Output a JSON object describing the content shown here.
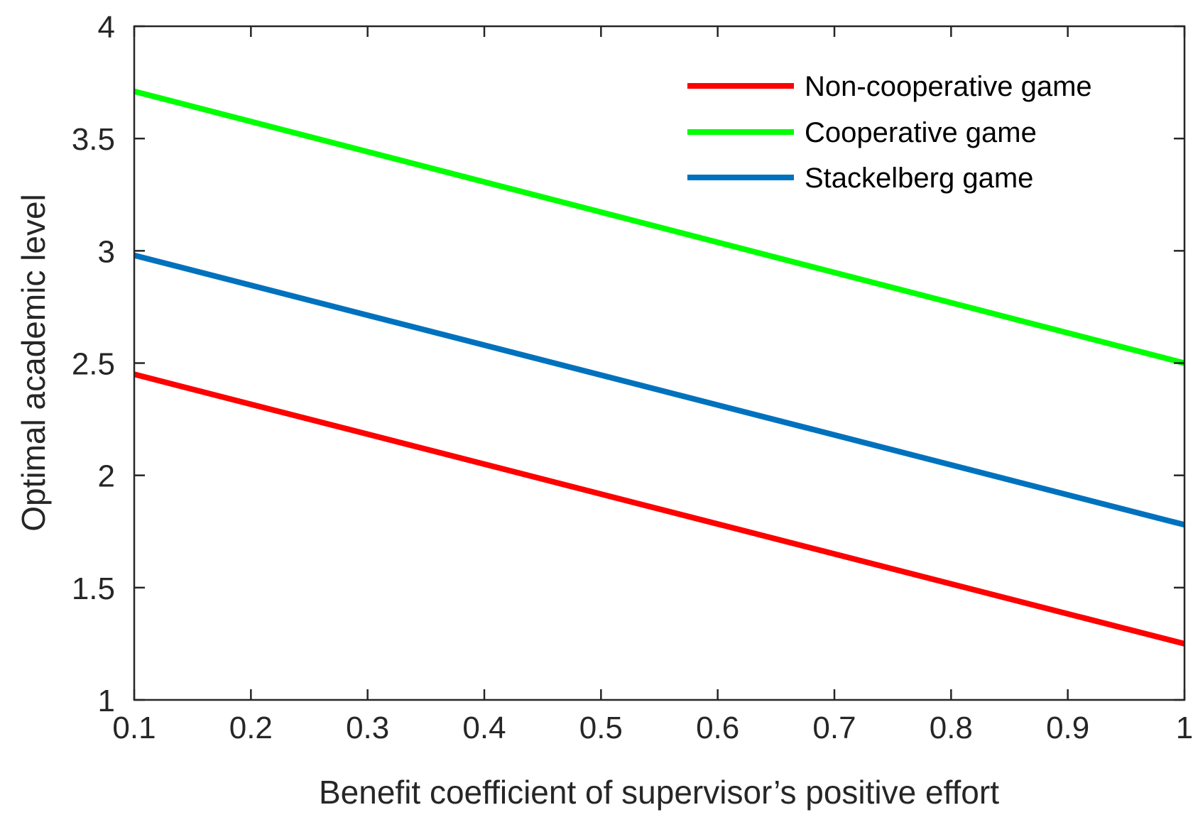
{
  "chart_data": {
    "type": "line",
    "title": "",
    "xlabel": "Benefit coefficient of supervisor’s positive effort",
    "ylabel": "Optimal academic level",
    "xlim": [
      0.1,
      1
    ],
    "ylim": [
      1,
      4
    ],
    "xticks": [
      "0.1",
      "0.2",
      "0.3",
      "0.4",
      "0.5",
      "0.6",
      "0.7",
      "0.8",
      "0.9",
      "1"
    ],
    "yticks": [
      "1",
      "1.5",
      "2",
      "2.5",
      "3",
      "3.5",
      "4"
    ],
    "x": [
      0.1,
      1
    ],
    "legend_position": "top-right",
    "series": [
      {
        "name": "Non-cooperative game",
        "color": "#ff0000",
        "values": [
          2.45,
          1.25
        ]
      },
      {
        "name": "Cooperative game",
        "color": "#00ff00",
        "values": [
          3.71,
          2.5
        ]
      },
      {
        "name": "Stackelberg game",
        "color": "#0072bd",
        "values": [
          2.98,
          1.78
        ]
      }
    ]
  }
}
